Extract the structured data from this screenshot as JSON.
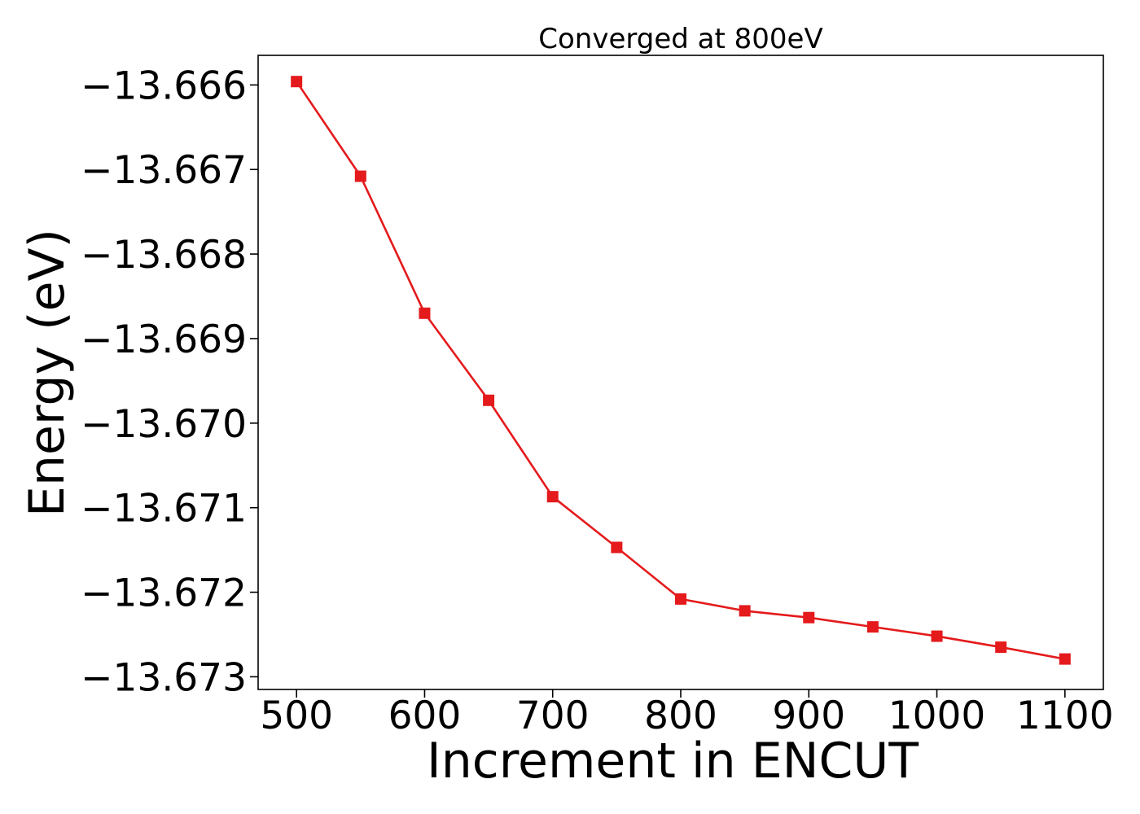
{
  "chart_data": {
    "type": "line",
    "title": "Converged at 800eV",
    "xlabel": "Increment in ENCUT",
    "ylabel": "Energy (eV)",
    "xlim": [
      470,
      1130
    ],
    "ylim": [
      -13.67315,
      -13.66565
    ],
    "xticks": [
      500,
      600,
      700,
      800,
      900,
      1000,
      1100
    ],
    "xtick_labels": [
      "500",
      "600",
      "700",
      "800",
      "900",
      "1000",
      "1100"
    ],
    "yticks": [
      -13.666,
      -13.667,
      -13.668,
      -13.669,
      -13.67,
      -13.671,
      -13.672,
      -13.673
    ],
    "ytick_labels": [
      "−13.666",
      "−13.667",
      "−13.668",
      "−13.669",
      "−13.670",
      "−13.671",
      "−13.672",
      "−13.673"
    ],
    "grid": false,
    "series": [
      {
        "color": "#e41a1c",
        "marker": "square",
        "x": [
          500,
          550,
          600,
          650,
          700,
          750,
          800,
          850,
          900,
          950,
          1000,
          1050,
          1100
        ],
        "y": [
          -13.66596,
          -13.66708,
          -13.6687,
          -13.66973,
          -13.67087,
          -13.67147,
          -13.67208,
          -13.67222,
          -13.6723,
          -13.67241,
          -13.67252,
          -13.67265,
          -13.67279
        ]
      }
    ]
  }
}
